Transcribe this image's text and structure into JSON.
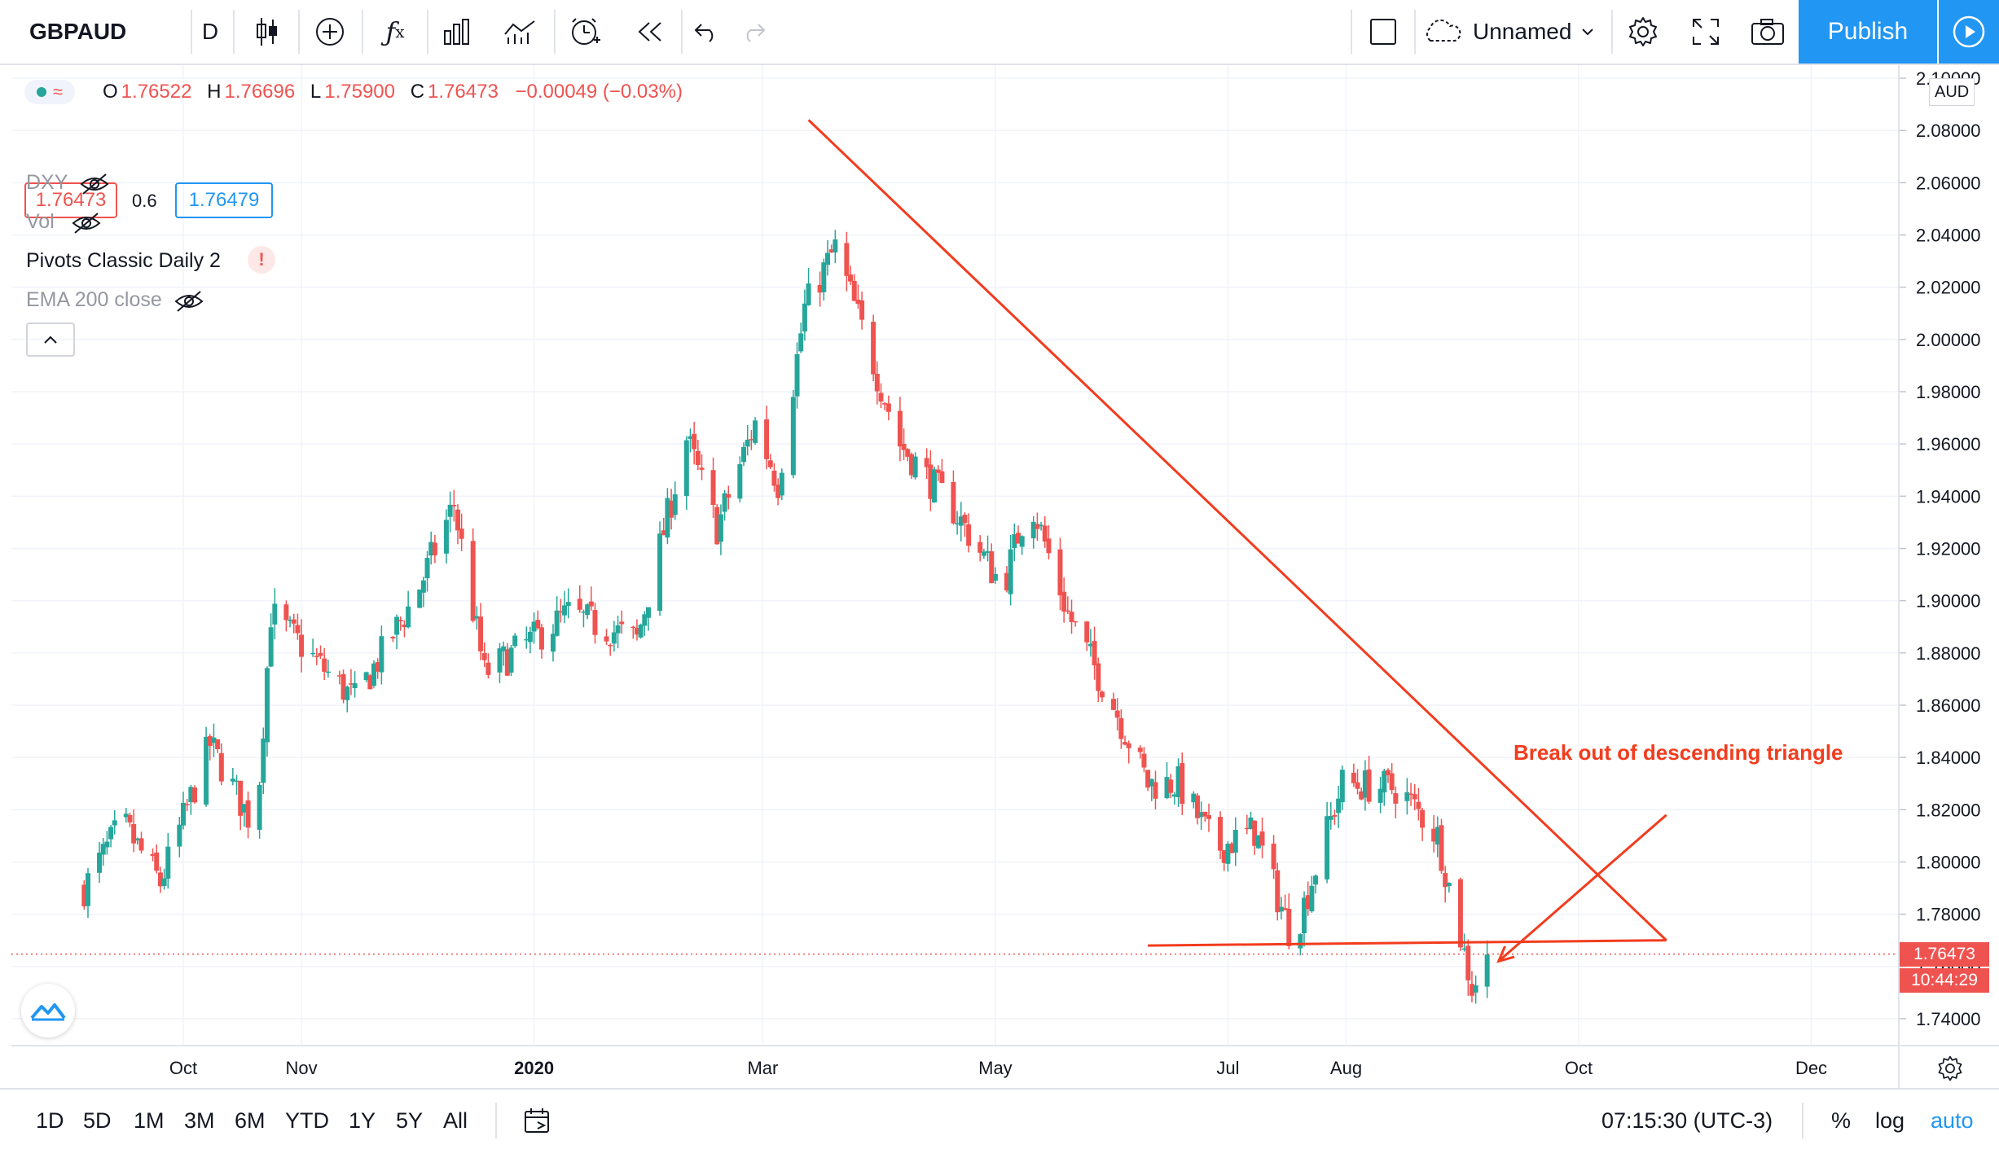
{
  "toolbar": {
    "symbol": "GBPAUD",
    "interval": "D",
    "layout_name": "Unnamed",
    "publish_label": "Publish"
  },
  "legend": {
    "open_label": "O",
    "open": "1.76522",
    "high_label": "H",
    "high": "1.76696",
    "low_label": "L",
    "low": "1.75900",
    "close_label": "C",
    "close": "1.76473",
    "change": "−0.00049 (−0.03%)",
    "bid": "1.76473",
    "spread": "0.6",
    "ask": "1.76479"
  },
  "indicators": [
    {
      "name": "DXY",
      "hidden": true
    },
    {
      "name": "Vol",
      "hidden": true
    },
    {
      "name": "Pivots Classic Daily 2",
      "warning": "!"
    },
    {
      "name": "EMA 200 close",
      "hidden": true
    }
  ],
  "price_axis": {
    "currency": "AUD",
    "ticks": [
      "2.10000",
      "2.08000",
      "2.06000",
      "2.04000",
      "2.02000",
      "2.00000",
      "1.98000",
      "1.96000",
      "1.94000",
      "1.92000",
      "1.90000",
      "1.88000",
      "1.86000",
      "1.84000",
      "1.82000",
      "1.80000",
      "1.78000",
      "1.76000",
      "1.74000"
    ],
    "last_price": "1.76473",
    "countdown": "10:44:29"
  },
  "time_axis": {
    "labels": [
      "Oct",
      "Nov",
      "2020",
      "Mar",
      "May",
      "Jul",
      "Aug",
      "Oct",
      "Dec"
    ]
  },
  "annotation": {
    "text": "Break out of descending triangle"
  },
  "bottom_bar": {
    "ranges": [
      "1D",
      "5D",
      "1M",
      "3M",
      "6M",
      "YTD",
      "1Y",
      "5Y",
      "All"
    ],
    "clock": "07:15:30 (UTC-3)",
    "percent_label": "%",
    "log_label": "log",
    "auto_label": "auto"
  },
  "colors": {
    "up": "#26a69a",
    "down": "#ef5350",
    "drawing": "#f23c1e",
    "accent": "#2196f3"
  },
  "chart_data": {
    "type": "candlestick",
    "symbol": "GBPAUD",
    "timeframe": "D",
    "y_range": [
      1.73,
      2.105
    ],
    "x_labels": [
      "Oct",
      "Nov",
      "2020",
      "Mar",
      "May",
      "Jul",
      "Aug",
      "Oct",
      "Dec"
    ],
    "close_path": [
      {
        "date": "2019-09-05",
        "close": 1.79
      },
      {
        "date": "2019-09-15",
        "close": 1.815
      },
      {
        "date": "2019-09-25",
        "close": 1.792
      },
      {
        "date": "2019-10-08",
        "close": 1.845
      },
      {
        "date": "2019-10-20",
        "close": 1.812
      },
      {
        "date": "2019-10-24",
        "close": 1.895
      },
      {
        "date": "2019-11-08",
        "close": 1.872
      },
      {
        "date": "2019-11-15",
        "close": 1.862
      },
      {
        "date": "2019-12-01",
        "close": 1.902
      },
      {
        "date": "2019-12-11",
        "close": 1.937
      },
      {
        "date": "2019-12-19",
        "close": 1.872
      },
      {
        "date": "2020-01-10",
        "close": 1.895
      },
      {
        "date": "2020-01-28",
        "close": 1.885
      },
      {
        "date": "2020-02-10",
        "close": 1.962
      },
      {
        "date": "2020-02-18",
        "close": 1.928
      },
      {
        "date": "2020-02-28",
        "close": 1.968
      },
      {
        "date": "2020-03-05",
        "close": 1.945
      },
      {
        "date": "2020-03-12",
        "close": 2.012
      },
      {
        "date": "2020-03-20",
        "close": 2.035
      },
      {
        "date": "2020-04-06",
        "close": 1.96
      },
      {
        "date": "2020-04-20",
        "close": 1.935
      },
      {
        "date": "2020-05-03",
        "close": 1.905
      },
      {
        "date": "2020-05-10",
        "close": 1.94
      },
      {
        "date": "2020-05-20",
        "close": 1.895
      },
      {
        "date": "2020-06-01",
        "close": 1.86
      },
      {
        "date": "2020-06-10",
        "close": 1.83
      },
      {
        "date": "2020-06-18",
        "close": 1.83
      },
      {
        "date": "2020-06-28",
        "close": 1.805
      },
      {
        "date": "2020-07-08",
        "close": 1.812
      },
      {
        "date": "2020-07-18",
        "close": 1.77
      },
      {
        "date": "2020-07-31",
        "close": 1.83
      },
      {
        "date": "2020-08-15",
        "close": 1.828
      },
      {
        "date": "2020-08-25",
        "close": 1.81
      },
      {
        "date": "2020-09-03",
        "close": 1.752
      },
      {
        "date": "2020-09-08",
        "close": 1.7647
      }
    ],
    "drawings": [
      {
        "kind": "trendline",
        "from": {
          "date": "2020-03-13",
          "price": 2.084
        },
        "to": {
          "date": "2020-10-24",
          "price": 1.77
        }
      },
      {
        "kind": "trendline",
        "from": {
          "date": "2020-06-10",
          "price": 1.768
        },
        "to": {
          "date": "2020-10-24",
          "price": 1.77
        }
      },
      {
        "kind": "arrow",
        "from": {
          "date": "2020-10-24",
          "price": 1.818
        },
        "to": {
          "date": "2020-09-10",
          "price": 1.762
        }
      }
    ]
  }
}
